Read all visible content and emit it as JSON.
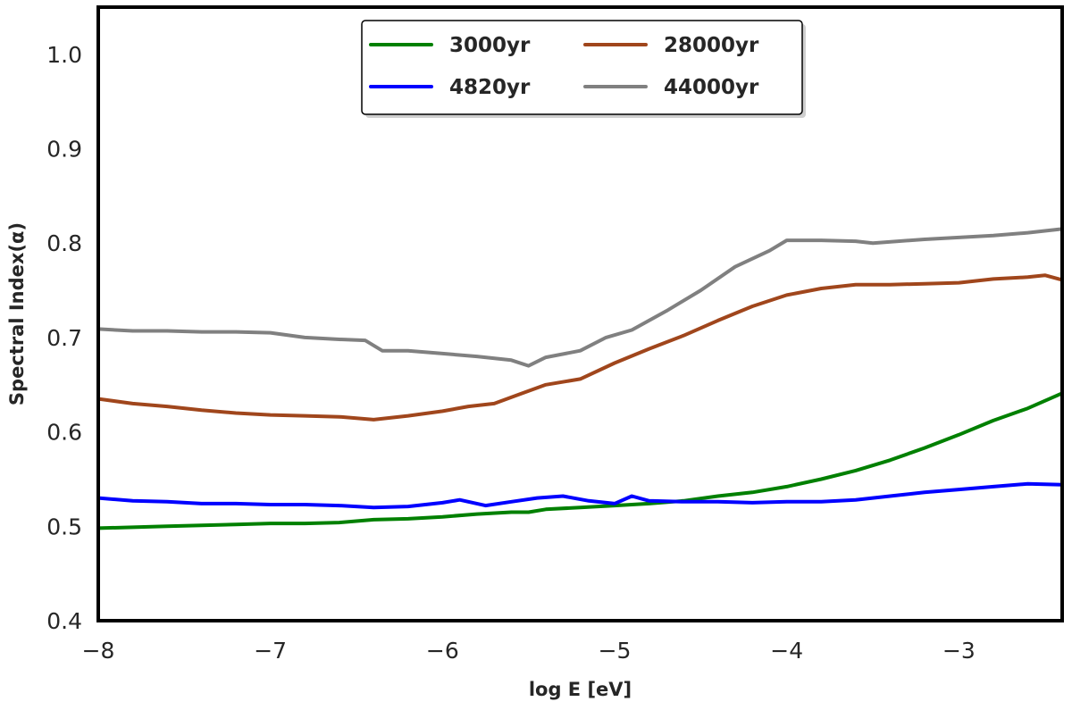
{
  "chart_data": {
    "type": "line",
    "xlabel": "log E [eV]",
    "ylabel": "Spectral Index(α)",
    "xlim": [
      -8,
      -2.4
    ],
    "ylim": [
      0.4,
      1.05
    ],
    "xticks": [
      -8,
      -7,
      -6,
      -5,
      -4,
      -3
    ],
    "xtick_labels": [
      "−8",
      "−7",
      "−6",
      "−5",
      "−4",
      "−3"
    ],
    "yticks": [
      0.4,
      0.5,
      0.6,
      0.7,
      0.8,
      0.9,
      1.0
    ],
    "ytick_labels": [
      "0.4",
      "0.5",
      "0.6",
      "0.7",
      "0.8",
      "0.9",
      "1.0"
    ],
    "grid": false,
    "legend_position": "top-center",
    "series": [
      {
        "name": "3000yr",
        "color": "#008000",
        "points": [
          [
            -8.0,
            0.498
          ],
          [
            -7.8,
            0.499
          ],
          [
            -7.6,
            0.5
          ],
          [
            -7.4,
            0.501
          ],
          [
            -7.2,
            0.502
          ],
          [
            -7.0,
            0.503
          ],
          [
            -6.8,
            0.503
          ],
          [
            -6.6,
            0.504
          ],
          [
            -6.4,
            0.507
          ],
          [
            -6.2,
            0.508
          ],
          [
            -6.0,
            0.51
          ],
          [
            -5.8,
            0.513
          ],
          [
            -5.6,
            0.515
          ],
          [
            -5.5,
            0.515
          ],
          [
            -5.4,
            0.518
          ],
          [
            -5.2,
            0.52
          ],
          [
            -5.0,
            0.522
          ],
          [
            -4.8,
            0.524
          ],
          [
            -4.6,
            0.527
          ],
          [
            -4.4,
            0.532
          ],
          [
            -4.2,
            0.536
          ],
          [
            -4.0,
            0.542
          ],
          [
            -3.8,
            0.55
          ],
          [
            -3.6,
            0.559
          ],
          [
            -3.4,
            0.57
          ],
          [
            -3.2,
            0.583
          ],
          [
            -3.0,
            0.597
          ],
          [
            -2.8,
            0.612
          ],
          [
            -2.6,
            0.625
          ],
          [
            -2.4,
            0.641
          ]
        ]
      },
      {
        "name": "4820yr",
        "color": "#0000ff",
        "points": [
          [
            -8.0,
            0.53
          ],
          [
            -7.8,
            0.527
          ],
          [
            -7.6,
            0.526
          ],
          [
            -7.4,
            0.524
          ],
          [
            -7.2,
            0.524
          ],
          [
            -7.0,
            0.523
          ],
          [
            -6.8,
            0.523
          ],
          [
            -6.6,
            0.522
          ],
          [
            -6.4,
            0.52
          ],
          [
            -6.2,
            0.521
          ],
          [
            -6.0,
            0.525
          ],
          [
            -5.9,
            0.528
          ],
          [
            -5.75,
            0.522
          ],
          [
            -5.6,
            0.526
          ],
          [
            -5.45,
            0.53
          ],
          [
            -5.3,
            0.532
          ],
          [
            -5.15,
            0.527
          ],
          [
            -5.0,
            0.524
          ],
          [
            -4.9,
            0.532
          ],
          [
            -4.8,
            0.527
          ],
          [
            -4.6,
            0.526
          ],
          [
            -4.4,
            0.526
          ],
          [
            -4.2,
            0.525
          ],
          [
            -4.0,
            0.526
          ],
          [
            -3.8,
            0.526
          ],
          [
            -3.6,
            0.528
          ],
          [
            -3.4,
            0.532
          ],
          [
            -3.2,
            0.536
          ],
          [
            -3.0,
            0.539
          ],
          [
            -2.8,
            0.542
          ],
          [
            -2.6,
            0.545
          ],
          [
            -2.4,
            0.544
          ]
        ]
      },
      {
        "name": "28000yr",
        "color": "#a0461c",
        "points": [
          [
            -8.0,
            0.635
          ],
          [
            -7.8,
            0.63
          ],
          [
            -7.6,
            0.627
          ],
          [
            -7.4,
            0.623
          ],
          [
            -7.2,
            0.62
          ],
          [
            -7.0,
            0.618
          ],
          [
            -6.8,
            0.617
          ],
          [
            -6.6,
            0.616
          ],
          [
            -6.4,
            0.613
          ],
          [
            -6.2,
            0.617
          ],
          [
            -6.0,
            0.622
          ],
          [
            -5.85,
            0.627
          ],
          [
            -5.7,
            0.63
          ],
          [
            -5.55,
            0.64
          ],
          [
            -5.4,
            0.65
          ],
          [
            -5.2,
            0.656
          ],
          [
            -5.0,
            0.673
          ],
          [
            -4.8,
            0.688
          ],
          [
            -4.6,
            0.702
          ],
          [
            -4.4,
            0.718
          ],
          [
            -4.2,
            0.733
          ],
          [
            -4.0,
            0.745
          ],
          [
            -3.8,
            0.752
          ],
          [
            -3.6,
            0.756
          ],
          [
            -3.4,
            0.756
          ],
          [
            -3.2,
            0.757
          ],
          [
            -3.0,
            0.758
          ],
          [
            -2.8,
            0.762
          ],
          [
            -2.6,
            0.764
          ],
          [
            -2.5,
            0.766
          ],
          [
            -2.4,
            0.761
          ]
        ]
      },
      {
        "name": "44000yr",
        "color": "#808080",
        "points": [
          [
            -8.0,
            0.709
          ],
          [
            -7.8,
            0.707
          ],
          [
            -7.6,
            0.707
          ],
          [
            -7.4,
            0.706
          ],
          [
            -7.2,
            0.706
          ],
          [
            -7.0,
            0.705
          ],
          [
            -6.8,
            0.7
          ],
          [
            -6.6,
            0.698
          ],
          [
            -6.45,
            0.697
          ],
          [
            -6.35,
            0.686
          ],
          [
            -6.2,
            0.686
          ],
          [
            -6.0,
            0.683
          ],
          [
            -5.8,
            0.68
          ],
          [
            -5.6,
            0.676
          ],
          [
            -5.5,
            0.67
          ],
          [
            -5.4,
            0.679
          ],
          [
            -5.2,
            0.686
          ],
          [
            -5.05,
            0.7
          ],
          [
            -4.9,
            0.708
          ],
          [
            -4.7,
            0.728
          ],
          [
            -4.5,
            0.75
          ],
          [
            -4.3,
            0.775
          ],
          [
            -4.1,
            0.792
          ],
          [
            -4.0,
            0.803
          ],
          [
            -3.8,
            0.803
          ],
          [
            -3.6,
            0.802
          ],
          [
            -3.5,
            0.8
          ],
          [
            -3.2,
            0.804
          ],
          [
            -3.0,
            0.806
          ],
          [
            -2.8,
            0.808
          ],
          [
            -2.6,
            0.811
          ],
          [
            -2.4,
            0.815
          ]
        ]
      }
    ]
  }
}
